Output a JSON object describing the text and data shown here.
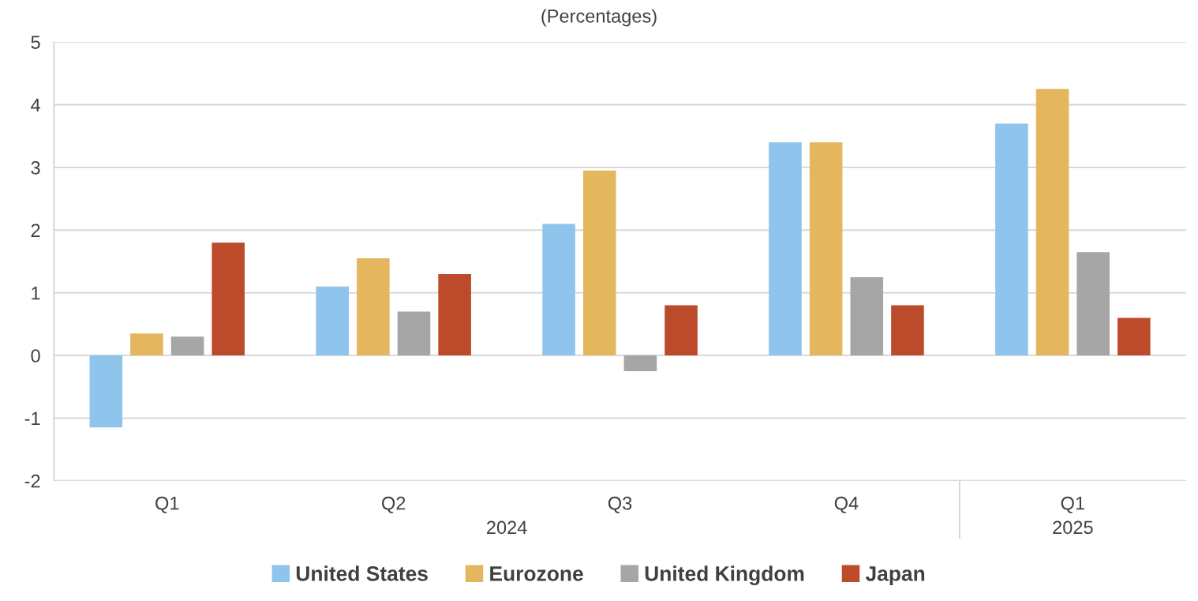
{
  "chart_data": {
    "type": "bar",
    "title": "(Percentages)",
    "categories": [
      "Q1",
      "Q2",
      "Q3",
      "Q4",
      "Q1"
    ],
    "series": [
      {
        "name": "United States",
        "color": "#8fc5ec",
        "values": [
          -1.15,
          1.1,
          2.1,
          3.4,
          3.7
        ]
      },
      {
        "name": "Eurozone",
        "color": "#e4b75e",
        "values": [
          0.35,
          1.55,
          2.95,
          3.4,
          4.25
        ]
      },
      {
        "name": "United Kingdom",
        "color": "#a6a6a6",
        "values": [
          0.3,
          0.7,
          -0.25,
          1.25,
          1.65
        ]
      },
      {
        "name": "Japan",
        "color": "#bc4b2c",
        "values": [
          1.8,
          1.3,
          0.8,
          0.8,
          0.6
        ]
      }
    ],
    "annotations": [
      "2024",
      "2025"
    ],
    "ylim": [
      -2,
      5
    ],
    "yticks": [
      -2,
      -1,
      0,
      1,
      2,
      3,
      4,
      5
    ],
    "grid": "y",
    "legend": "bottom"
  }
}
